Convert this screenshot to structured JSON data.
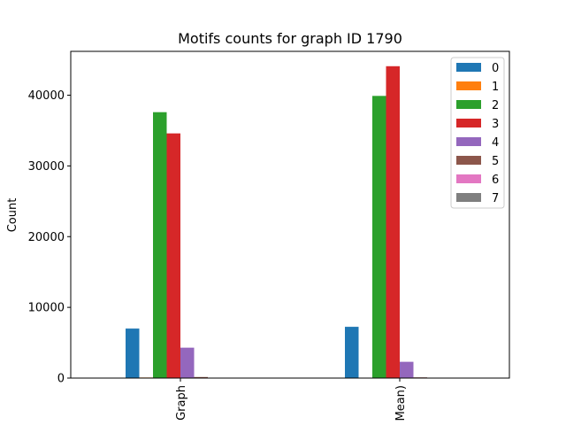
{
  "chart_data": {
    "type": "bar",
    "title": "Motifs counts for graph ID 1790",
    "xlabel": "",
    "ylabel": "Count",
    "categories": [
      "Graph",
      "Mean)"
    ],
    "ylim": [
      0,
      46200
    ],
    "yticks": [
      0,
      10000,
      20000,
      30000,
      40000
    ],
    "grid": false,
    "legend_position": "top-right",
    "series": [
      {
        "name": "0",
        "color": "#1f77b4",
        "values": [
          7000,
          7250
        ]
      },
      {
        "name": "1",
        "color": "#ff7f0e",
        "values": [
          80,
          50
        ]
      },
      {
        "name": "2",
        "color": "#2ca02c",
        "values": [
          37600,
          39900
        ]
      },
      {
        "name": "3",
        "color": "#d62728",
        "values": [
          34600,
          44100
        ]
      },
      {
        "name": "4",
        "color": "#9467bd",
        "values": [
          4300,
          2300
        ]
      },
      {
        "name": "5",
        "color": "#8c564b",
        "values": [
          150,
          100
        ]
      },
      {
        "name": "6",
        "color": "#e377c2",
        "values": [
          60,
          30
        ]
      },
      {
        "name": "7",
        "color": "#7f7f7f",
        "values": [
          20,
          10
        ]
      }
    ]
  }
}
